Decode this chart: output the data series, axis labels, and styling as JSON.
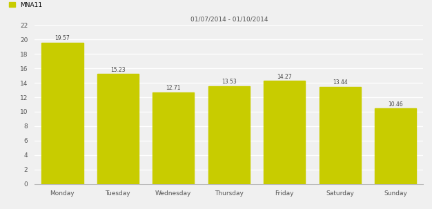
{
  "title": "01/07/2014 - 01/10/2014",
  "categories": [
    "Monday",
    "Tuesday",
    "Wednesday",
    "Thursday",
    "Friday",
    "Saturday",
    "Sunday"
  ],
  "values": [
    19.57,
    15.23,
    12.71,
    13.53,
    14.27,
    13.44,
    10.46
  ],
  "bar_color": "#c8cc00",
  "bar_edge_color": "#c8cc00",
  "ylim": [
    0,
    22
  ],
  "yticks": [
    0,
    2,
    4,
    6,
    8,
    10,
    12,
    14,
    16,
    18,
    20,
    22
  ],
  "legend_label": "MNA11",
  "background_color": "#f0f0f0",
  "grid_color": "#ffffff",
  "label_fontsize": 6.5,
  "title_fontsize": 6.5,
  "value_label_fontsize": 5.5,
  "bar_width": 0.75
}
